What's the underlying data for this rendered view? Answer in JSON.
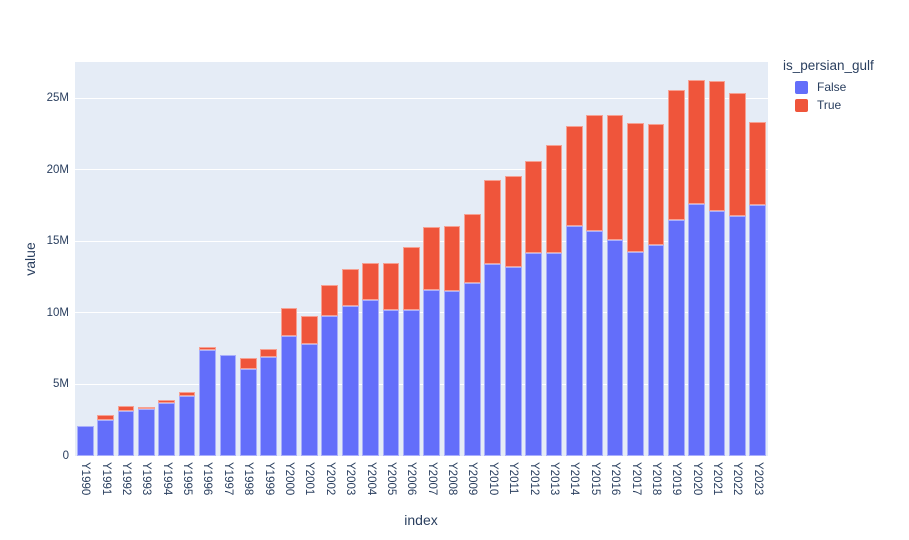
{
  "figure_title": "",
  "axes": {
    "y_title": "value",
    "x_title": "index"
  },
  "legend": {
    "title": "is_persian_gulf",
    "items": [
      {
        "label": "False",
        "color": "#636efa"
      },
      {
        "label": "True",
        "color": "#ef553b"
      }
    ]
  },
  "chart_data": {
    "type": "bar",
    "stacked": true,
    "title": "",
    "xlabel": "index",
    "ylabel": "value",
    "legend_title": "is_persian_gulf",
    "legend_position": "top-right",
    "grid": true,
    "plot_bg": "#e5ecf6",
    "grid_color": "#ffffff",
    "y_unit": "millions",
    "ylim": [
      0,
      27.55
    ],
    "y_ticks": [
      {
        "label": "0",
        "value": 0
      },
      {
        "label": "5M",
        "value": 5
      },
      {
        "label": "10M",
        "value": 10
      },
      {
        "label": "15M",
        "value": 15
      },
      {
        "label": "20M",
        "value": 20
      },
      {
        "label": "25M",
        "value": 25
      }
    ],
    "categories": [
      "Y1990",
      "Y1991",
      "Y1992",
      "Y1993",
      "Y1994",
      "Y1995",
      "Y1996",
      "Y1997",
      "Y1998",
      "Y1999",
      "Y2000",
      "Y2001",
      "Y2002",
      "Y2003",
      "Y2004",
      "Y2005",
      "Y2006",
      "Y2007",
      "Y2008",
      "Y2009",
      "Y2010",
      "Y2011",
      "Y2012",
      "Y2013",
      "Y2014",
      "Y2015",
      "Y2016",
      "Y2017",
      "Y2018",
      "Y2019",
      "Y2020",
      "Y2021",
      "Y2022",
      "Y2023"
    ],
    "series": [
      {
        "name": "False",
        "color": "#636efa",
        "values": [
          2.1,
          2.55,
          3.15,
          3.3,
          3.7,
          4.2,
          7.4,
          7.05,
          6.05,
          6.9,
          8.4,
          7.8,
          9.8,
          10.5,
          10.9,
          10.2,
          10.2,
          11.6,
          11.55,
          12.1,
          13.45,
          13.25,
          14.2,
          14.2,
          16.05,
          15.7,
          15.1,
          14.25,
          14.75,
          16.5,
          17.65,
          17.1,
          16.75,
          17.55
        ]
      },
      {
        "name": "True",
        "color": "#ef553b",
        "values": [
          0,
          0.3,
          0.35,
          0.15,
          0.2,
          0.25,
          0.22,
          0,
          0.8,
          0.6,
          1.95,
          2.0,
          2.15,
          2.55,
          2.6,
          3.3,
          4.45,
          4.4,
          4.5,
          4.8,
          5.85,
          6.35,
          6.4,
          7.55,
          7.0,
          8.15,
          8.75,
          9.05,
          8.5,
          9.1,
          8.65,
          9.1,
          8.6,
          5.8
        ]
      }
    ]
  }
}
